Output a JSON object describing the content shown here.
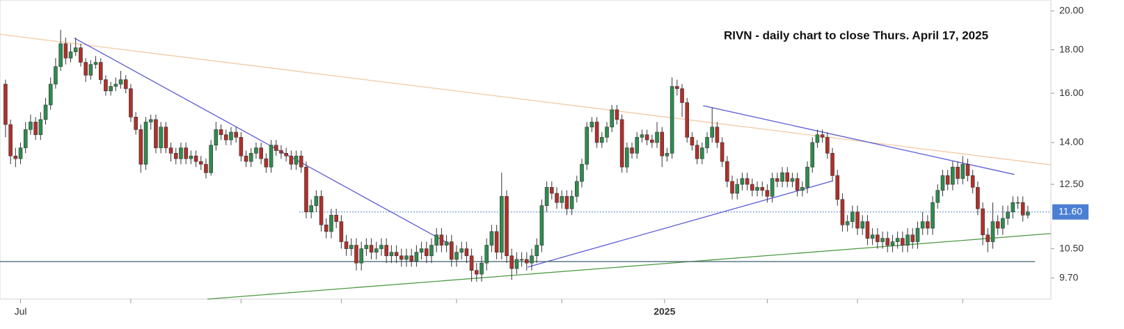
{
  "chart_data": {
    "type": "candlestick",
    "title": "RIVN - daily chart to close Thurs. April 17, 2025",
    "log_scale": true,
    "up_color": "#2e8b4f",
    "down_color": "#b0302a",
    "xlim": [
      -1.1,
      208.6
    ],
    "xticks": [
      {
        "value": 3,
        "label": "Jul"
      },
      {
        "value": 25,
        "label": null
      },
      {
        "value": 47,
        "label": null
      },
      {
        "value": 67,
        "label": null
      },
      {
        "value": 90,
        "label": null
      },
      {
        "value": 111,
        "label": null
      },
      {
        "value": 131.5,
        "label": "2025"
      },
      {
        "value": 152,
        "label": null
      },
      {
        "value": 170,
        "label": null
      },
      {
        "value": 191,
        "label": null
      }
    ],
    "ylim": [
      9.16,
      20.6
    ],
    "yticks": [
      {
        "value": 9.7,
        "label": "9.70"
      },
      {
        "value": 10.5,
        "label": "10.50"
      },
      {
        "value": 12.5,
        "label": "12.50"
      },
      {
        "value": 14,
        "label": "14.00"
      },
      {
        "value": 16,
        "label": "16.00"
      },
      {
        "value": 18,
        "label": "18.00"
      },
      {
        "value": 20,
        "label": "20.00"
      }
    ],
    "last_price": {
      "value": 11.6,
      "label": "11.60",
      "color": "#4a7fd4"
    },
    "open": [
      16.4,
      14.7,
      13.5,
      13.4,
      13.8,
      14.5,
      14.8,
      14.3,
      14.9,
      15.5,
      16.4,
      17.2,
      18.3,
      17.6,
      17.9,
      18.1,
      17.4,
      16.8,
      17.3,
      17.4,
      16.6,
      16.1,
      16.3,
      16.4,
      16.6,
      16.2,
      15.0,
      14.5,
      13.2,
      14.8,
      14.9,
      13.8,
      14.6,
      13.8,
      13.6,
      13.4,
      13.8,
      13.4,
      13.5,
      13.3,
      13.2,
      12.9,
      13.9,
      14.5,
      14.3,
      14.1,
      14.4,
      14.2,
      13.5,
      13.3,
      13.6,
      13.8,
      13.4,
      13.1,
      13.9,
      13.7,
      13.6,
      13.5,
      13.2,
      13.5,
      13.1,
      11.6,
      11.8,
      12.1,
      11.2,
      11.0,
      11.5,
      11.3,
      10.7,
      10.5,
      10.6,
      10.1,
      10.5,
      10.6,
      10.4,
      10.5,
      10.6,
      10.3,
      10.4,
      10.3,
      10.2,
      10.3,
      10.15,
      10.4,
      10.5,
      10.3,
      10.6,
      10.9,
      10.6,
      10.7,
      10.2,
      10.4,
      10.5,
      10.3,
      9.9,
      9.8,
      10.1,
      10.6,
      11.0,
      10.4,
      12.1,
      10.3,
      9.95,
      10.2,
      10.2,
      10.1,
      10.3,
      10.6,
      11.8,
      12.4,
      12.2,
      11.9,
      12.1,
      11.7,
      12.1,
      12.6,
      13.2,
      14.6,
      14.8,
      14.0,
      14.2,
      14.6,
      15.3,
      14.9,
      13.1,
      13.8,
      13.6,
      14.2,
      14.3,
      14.1,
      14.0,
      14.4,
      13.5,
      13.6,
      16.3,
      16.2,
      15.6,
      14.2,
      13.9,
      13.4,
      13.8,
      14.2,
      14.6,
      14.0,
      13.3,
      12.6,
      12.2,
      12.5,
      12.7,
      12.5,
      12.3,
      12.4,
      12.3,
      12.1,
      12.7,
      12.6,
      12.9,
      12.6,
      12.7,
      12.3,
      12.4,
      13.1,
      14.0,
      14.3,
      14.2,
      13.6,
      12.8,
      12.0,
      11.2,
      11.3,
      11.6,
      11.1,
      11.3,
      10.8,
      10.9,
      10.7,
      10.8,
      10.6,
      10.7,
      10.8,
      10.6,
      10.9,
      10.7,
      11.1,
      11.3,
      11.1,
      11.9,
      12.3,
      12.8,
      12.5,
      13.1,
      12.7,
      13.2,
      12.8,
      12.4,
      11.7,
      10.9,
      10.7,
      11.3,
      11.1,
      11.4,
      11.6,
      11.9,
      11.9,
      11.5
    ],
    "high": [
      16.6,
      14.9,
      13.8,
      14.0,
      14.8,
      15.1,
      15.0,
      15.2,
      15.8,
      16.7,
      17.6,
      19.0,
      18.6,
      18.3,
      18.6,
      18.3,
      17.6,
      17.5,
      17.7,
      17.6,
      16.8,
      16.5,
      16.7,
      17.0,
      16.8,
      16.4,
      15.2,
      14.7,
      15.0,
      15.1,
      15.1,
      14.8,
      14.8,
      14.0,
      13.8,
      14.0,
      14.0,
      13.7,
      13.7,
      13.5,
      13.4,
      14.1,
      14.8,
      14.7,
      14.5,
      14.6,
      14.6,
      14.4,
      13.7,
      13.8,
      14.0,
      14.0,
      13.6,
      14.1,
      14.1,
      13.9,
      13.8,
      13.7,
      13.7,
      13.7,
      13.3,
      12.0,
      12.3,
      12.3,
      11.4,
      11.7,
      11.7,
      11.5,
      10.9,
      10.8,
      10.8,
      10.7,
      10.8,
      10.8,
      10.7,
      10.8,
      10.8,
      10.6,
      10.6,
      10.5,
      10.5,
      10.5,
      10.6,
      10.7,
      10.7,
      10.8,
      11.1,
      11.1,
      10.9,
      10.9,
      10.6,
      10.7,
      10.7,
      10.5,
      10.1,
      10.3,
      10.8,
      11.2,
      11.2,
      12.9,
      12.3,
      10.5,
      10.4,
      10.4,
      10.4,
      10.5,
      10.8,
      12.0,
      12.6,
      12.6,
      12.4,
      12.3,
      12.3,
      12.3,
      12.8,
      13.4,
      14.8,
      15.0,
      15.0,
      14.4,
      14.8,
      15.5,
      15.5,
      15.1,
      14.0,
      14.0,
      14.4,
      14.5,
      14.5,
      14.3,
      14.8,
      14.6,
      13.8,
      16.7,
      16.6,
      16.4,
      15.8,
      14.4,
      14.1,
      14.0,
      14.4,
      15.4,
      14.8,
      14.2,
      13.5,
      12.8,
      12.7,
      12.9,
      12.9,
      12.7,
      12.6,
      12.6,
      12.5,
      12.9,
      12.9,
      13.1,
      13.1,
      12.9,
      12.9,
      12.6,
      13.3,
      14.2,
      14.5,
      14.5,
      14.4,
      13.8,
      13.0,
      12.2,
      11.5,
      11.8,
      11.8,
      11.5,
      11.5,
      11.1,
      11.1,
      11.0,
      11.0,
      10.9,
      11.0,
      11.0,
      11.1,
      11.1,
      11.3,
      11.6,
      11.5,
      12.1,
      12.5,
      13.0,
      13.0,
      13.3,
      13.3,
      13.5,
      13.4,
      13.0,
      12.6,
      11.9,
      11.1,
      11.9,
      11.5,
      11.8,
      11.8,
      12.1,
      12.1,
      12.1,
      11.8
    ],
    "low": [
      14.2,
      13.2,
      13.1,
      13.2,
      13.6,
      14.3,
      14.1,
      14.1,
      14.7,
      15.3,
      16.2,
      17.0,
      17.3,
      17.4,
      17.7,
      17.2,
      16.5,
      16.6,
      17.1,
      16.4,
      15.9,
      15.9,
      16.1,
      16.2,
      16.0,
      14.8,
      14.3,
      12.9,
      13.0,
      14.5,
      13.6,
      13.6,
      13.6,
      13.3,
      13.2,
      13.2,
      13.2,
      13.2,
      13.1,
      13.0,
      12.7,
      12.8,
      13.7,
      14.1,
      13.9,
      13.9,
      14.0,
      13.3,
      13.1,
      13.1,
      13.4,
      13.2,
      12.9,
      12.9,
      13.5,
      13.4,
      13.3,
      13.0,
      13.0,
      12.9,
      11.4,
      11.4,
      11.6,
      11.0,
      10.8,
      10.8,
      11.1,
      10.5,
      10.3,
      10.3,
      9.9,
      9.9,
      10.3,
      10.2,
      10.2,
      10.3,
      10.1,
      10.1,
      10.1,
      10.0,
      10.0,
      10.0,
      10.0,
      10.2,
      10.1,
      10.1,
      10.4,
      10.4,
      10.4,
      10.0,
      10.0,
      10.2,
      10.1,
      9.6,
      9.6,
      9.6,
      9.9,
      10.4,
      10.2,
      10.2,
      10.1,
      9.65,
      9.8,
      10.0,
      9.9,
      9.9,
      10.1,
      10.4,
      11.6,
      12.0,
      11.7,
      11.7,
      11.5,
      11.5,
      11.9,
      12.4,
      13.0,
      14.4,
      13.8,
      13.8,
      14.0,
      14.4,
      14.7,
      12.9,
      12.9,
      13.4,
      13.4,
      14.0,
      13.9,
      13.8,
      13.8,
      13.1,
      13.3,
      13.4,
      15.9,
      15.0,
      14.0,
      13.7,
      13.2,
      13.2,
      13.6,
      14.0,
      13.8,
      13.1,
      12.4,
      12.0,
      12.0,
      12.3,
      12.3,
      12.1,
      12.1,
      12.1,
      11.9,
      11.9,
      12.4,
      12.4,
      12.4,
      12.4,
      12.1,
      12.1,
      12.2,
      12.9,
      13.8,
      14.0,
      13.4,
      12.6,
      11.8,
      11.0,
      11.0,
      11.1,
      10.9,
      10.9,
      10.6,
      10.6,
      10.5,
      10.5,
      10.4,
      10.4,
      10.5,
      10.4,
      10.4,
      10.5,
      10.5,
      10.9,
      10.9,
      10.9,
      11.7,
      12.1,
      12.3,
      12.3,
      12.5,
      12.5,
      12.6,
      12.2,
      11.5,
      10.6,
      10.4,
      10.5,
      10.9,
      10.9,
      11.2,
      11.4,
      11.7,
      11.3,
      11.4
    ],
    "close": [
      14.7,
      13.5,
      13.4,
      13.8,
      14.5,
      14.8,
      14.3,
      14.9,
      15.5,
      16.4,
      17.2,
      18.3,
      17.6,
      17.9,
      18.1,
      17.4,
      16.8,
      17.3,
      17.4,
      16.6,
      16.1,
      16.3,
      16.4,
      16.6,
      16.2,
      15.0,
      14.5,
      13.2,
      14.8,
      14.9,
      13.8,
      14.6,
      13.8,
      13.6,
      13.4,
      13.8,
      13.4,
      13.5,
      13.3,
      13.2,
      12.9,
      13.9,
      14.5,
      14.3,
      14.1,
      14.4,
      14.2,
      13.5,
      13.3,
      13.6,
      13.8,
      13.4,
      13.1,
      13.9,
      13.7,
      13.6,
      13.5,
      13.2,
      13.5,
      13.1,
      11.6,
      11.8,
      12.1,
      11.2,
      11.0,
      11.5,
      11.3,
      10.7,
      10.5,
      10.6,
      10.1,
      10.5,
      10.6,
      10.4,
      10.5,
      10.6,
      10.3,
      10.4,
      10.3,
      10.2,
      10.3,
      10.15,
      10.4,
      10.5,
      10.3,
      10.6,
      10.9,
      10.6,
      10.7,
      10.2,
      10.4,
      10.5,
      10.3,
      9.9,
      9.8,
      10.1,
      10.6,
      11.0,
      10.4,
      12.1,
      10.3,
      9.95,
      10.2,
      10.2,
      10.1,
      10.3,
      10.6,
      11.8,
      12.4,
      12.2,
      11.9,
      12.1,
      11.7,
      12.1,
      12.6,
      13.2,
      14.6,
      14.8,
      14.0,
      14.2,
      14.6,
      15.3,
      14.9,
      13.1,
      13.8,
      13.6,
      14.2,
      14.3,
      14.1,
      14.0,
      14.4,
      13.5,
      13.6,
      16.3,
      16.2,
      15.6,
      14.2,
      13.9,
      13.4,
      13.8,
      14.2,
      14.6,
      14.0,
      13.3,
      12.6,
      12.2,
      12.5,
      12.7,
      12.5,
      12.3,
      12.4,
      12.3,
      12.1,
      12.7,
      12.6,
      12.9,
      12.6,
      12.7,
      12.3,
      12.4,
      13.1,
      14.0,
      14.3,
      14.2,
      13.6,
      12.8,
      12.0,
      11.2,
      11.3,
      11.6,
      11.1,
      11.3,
      10.8,
      10.9,
      10.7,
      10.8,
      10.6,
      10.7,
      10.8,
      10.6,
      10.9,
      10.7,
      11.1,
      11.3,
      11.1,
      11.9,
      12.3,
      12.8,
      12.5,
      13.1,
      12.7,
      13.2,
      12.8,
      12.4,
      11.7,
      10.9,
      10.7,
      11.3,
      11.1,
      11.4,
      11.6,
      11.9,
      11.9,
      11.5,
      11.6
    ],
    "lines": [
      {
        "color": "#f3c9a2",
        "points": [
          [
            -1.1,
            18.77
          ],
          [
            208.6,
            13.18
          ]
        ]
      },
      {
        "color": "#5b5bd6",
        "points": [
          [
            13.75,
            18.58
          ],
          [
            88.9,
            10.61
          ]
        ]
      },
      {
        "color": "#5b5bd6",
        "points": [
          [
            104.2,
            9.99
          ],
          [
            165.1,
            12.62
          ]
        ]
      },
      {
        "color": "#5b5bd6",
        "points": [
          [
            139.2,
            15.47
          ],
          [
            201.3,
            12.84
          ]
        ]
      },
      {
        "color": "#4f9a45",
        "points": [
          [
            40.3,
            9.16
          ],
          [
            208.6,
            10.94
          ]
        ]
      },
      {
        "color": "#4d6b78",
        "points": [
          [
            -1.1,
            10.14
          ],
          [
            205.4,
            10.14
          ]
        ]
      },
      {
        "color": "#4a7fd4",
        "dash": true,
        "points": [
          [
            58.6,
            11.6
          ],
          [
            208.6,
            11.6
          ]
        ]
      }
    ]
  }
}
